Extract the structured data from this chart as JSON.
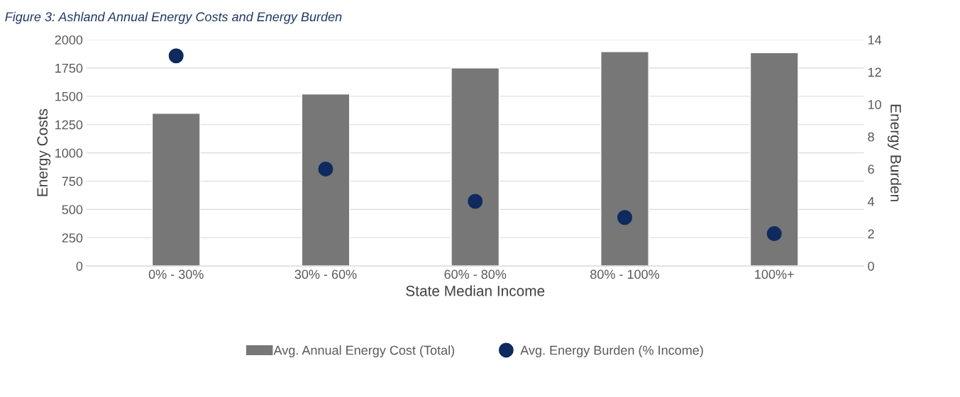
{
  "chart_data": {
    "type": "bar",
    "title": "Figure 3: Ashland Annual Energy Costs and Energy Burden",
    "categories": [
      "0% - 30%",
      "30% - 60%",
      "60% - 80%",
      "80% - 100%",
      "100%+"
    ],
    "xlabel": "State Median Income",
    "ylabel": "Energy Costs",
    "y2label": "Energy Burden",
    "series": [
      {
        "name": "Avg. Annual Energy Cost (Total)",
        "color": "#767776",
        "values": [
          1350,
          1520,
          1750,
          1895,
          1885
        ]
      },
      {
        "name": "Avg. Energy Burden (% Income)",
        "type": "scatter",
        "axis": "y2",
        "color": "#0e2a5e",
        "marker": "circle",
        "values": [
          13,
          6,
          4,
          3,
          2
        ]
      }
    ],
    "ylim": [
      0,
      2000
    ],
    "yticks": [
      0,
      250,
      500,
      750,
      1000,
      1250,
      1500,
      1750,
      2000
    ],
    "y2lim": [
      0,
      14
    ],
    "y2ticks": [
      0,
      2,
      4,
      6,
      8,
      10,
      12,
      14
    ],
    "grid": "y",
    "legend": "bottom"
  }
}
